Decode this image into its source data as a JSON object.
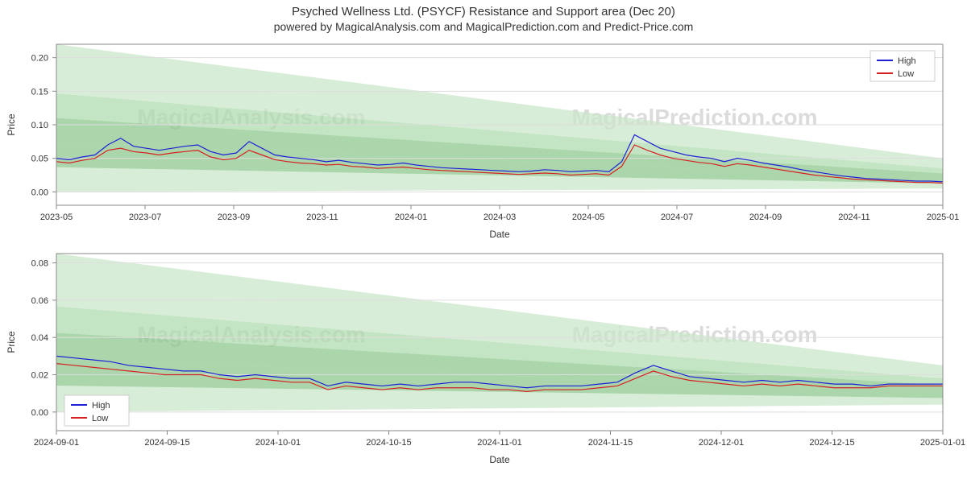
{
  "title": "Psyched Wellness Ltd. (PSYCF) Resistance and Support area (Dec 20)",
  "subtitle": "powered by MagicalAnalysis.com and MagicalPrediction.com and Predict-Price.com",
  "watermarks": [
    "MagicalAnalysis.com",
    "MagicalPrediction.com",
    "MagicalAnalysis.com",
    "MagicalPrediction.com"
  ],
  "colors": {
    "high_line": "#1f1fd6",
    "low_line": "#d62020",
    "fan_light": "#c9e5c9",
    "fan_mid": "#8fcf8f",
    "fan_dark": "#4aa64a",
    "grid": "#dddddd",
    "border": "#888888",
    "background": "#ffffff"
  },
  "chart1": {
    "type": "line",
    "ylabel": "Price",
    "xlabel": "Date",
    "ylim": [
      -0.02,
      0.22
    ],
    "yticks": [
      0.0,
      0.05,
      0.1,
      0.15,
      0.2
    ],
    "xticks": [
      "2023-05",
      "2023-07",
      "2023-09",
      "2023-11",
      "2024-01",
      "2024-03",
      "2024-05",
      "2024-07",
      "2024-09",
      "2024-11",
      "2025-01"
    ],
    "legend": {
      "items": [
        "High",
        "Low"
      ],
      "position": "top-right"
    },
    "line_width": 1.2,
    "fan": {
      "origin_y_range": [
        0.0,
        0.22
      ],
      "end_y_range": [
        0.005,
        0.05
      ],
      "bands": 6
    },
    "series_high": [
      0.05,
      0.048,
      0.052,
      0.055,
      0.07,
      0.08,
      0.068,
      0.065,
      0.062,
      0.065,
      0.068,
      0.07,
      0.06,
      0.055,
      0.058,
      0.075,
      0.065,
      0.055,
      0.052,
      0.05,
      0.048,
      0.045,
      0.047,
      0.044,
      0.042,
      0.04,
      0.041,
      0.043,
      0.04,
      0.038,
      0.036,
      0.035,
      0.034,
      0.033,
      0.032,
      0.031,
      0.03,
      0.031,
      0.033,
      0.032,
      0.03,
      0.031,
      0.032,
      0.03,
      0.045,
      0.085,
      0.075,
      0.065,
      0.06,
      0.055,
      0.052,
      0.05,
      0.045,
      0.05,
      0.047,
      0.043,
      0.04,
      0.037,
      0.033,
      0.03,
      0.027,
      0.024,
      0.022,
      0.02,
      0.019,
      0.018,
      0.017,
      0.016,
      0.016,
      0.015
    ],
    "series_low": [
      0.045,
      0.043,
      0.047,
      0.05,
      0.062,
      0.065,
      0.06,
      0.058,
      0.055,
      0.058,
      0.06,
      0.062,
      0.052,
      0.048,
      0.05,
      0.062,
      0.055,
      0.048,
      0.045,
      0.043,
      0.042,
      0.04,
      0.041,
      0.038,
      0.037,
      0.035,
      0.036,
      0.037,
      0.035,
      0.033,
      0.032,
      0.031,
      0.03,
      0.029,
      0.028,
      0.027,
      0.026,
      0.027,
      0.028,
      0.027,
      0.025,
      0.026,
      0.027,
      0.025,
      0.038,
      0.07,
      0.062,
      0.055,
      0.05,
      0.047,
      0.044,
      0.042,
      0.038,
      0.042,
      0.04,
      0.037,
      0.034,
      0.031,
      0.028,
      0.025,
      0.023,
      0.021,
      0.019,
      0.018,
      0.017,
      0.016,
      0.015,
      0.014,
      0.014,
      0.013
    ]
  },
  "chart2": {
    "type": "line",
    "ylabel": "Price",
    "xlabel": "Date",
    "ylim": [
      -0.01,
      0.085
    ],
    "yticks": [
      0.0,
      0.02,
      0.04,
      0.06,
      0.08
    ],
    "xticks": [
      "2024-09-01",
      "2024-09-15",
      "2024-10-01",
      "2024-10-15",
      "2024-11-01",
      "2024-11-15",
      "2024-12-01",
      "2024-12-15",
      "2025-01-01"
    ],
    "legend": {
      "items": [
        "High",
        "Low"
      ],
      "position": "bottom-left"
    },
    "line_width": 1.2,
    "fan": {
      "origin_y_range": [
        0.0,
        0.085
      ],
      "end_y_range": [
        0.004,
        0.025
      ],
      "bands": 6
    },
    "series_high": [
      0.03,
      0.029,
      0.028,
      0.027,
      0.025,
      0.024,
      0.023,
      0.022,
      0.022,
      0.02,
      0.019,
      0.02,
      0.019,
      0.018,
      0.018,
      0.014,
      0.016,
      0.015,
      0.014,
      0.015,
      0.014,
      0.015,
      0.016,
      0.016,
      0.015,
      0.014,
      0.013,
      0.014,
      0.014,
      0.014,
      0.015,
      0.016,
      0.021,
      0.025,
      0.022,
      0.019,
      0.018,
      0.017,
      0.016,
      0.017,
      0.016,
      0.017,
      0.016,
      0.015,
      0.015,
      0.014,
      0.015,
      0.015,
      0.015,
      0.015
    ],
    "series_low": [
      0.026,
      0.025,
      0.024,
      0.023,
      0.022,
      0.021,
      0.02,
      0.02,
      0.02,
      0.018,
      0.017,
      0.018,
      0.017,
      0.016,
      0.016,
      0.012,
      0.014,
      0.013,
      0.012,
      0.013,
      0.012,
      0.013,
      0.013,
      0.013,
      0.012,
      0.012,
      0.011,
      0.012,
      0.012,
      0.012,
      0.013,
      0.014,
      0.018,
      0.022,
      0.019,
      0.017,
      0.016,
      0.015,
      0.014,
      0.015,
      0.014,
      0.015,
      0.014,
      0.013,
      0.013,
      0.013,
      0.014,
      0.014,
      0.014,
      0.014
    ]
  }
}
